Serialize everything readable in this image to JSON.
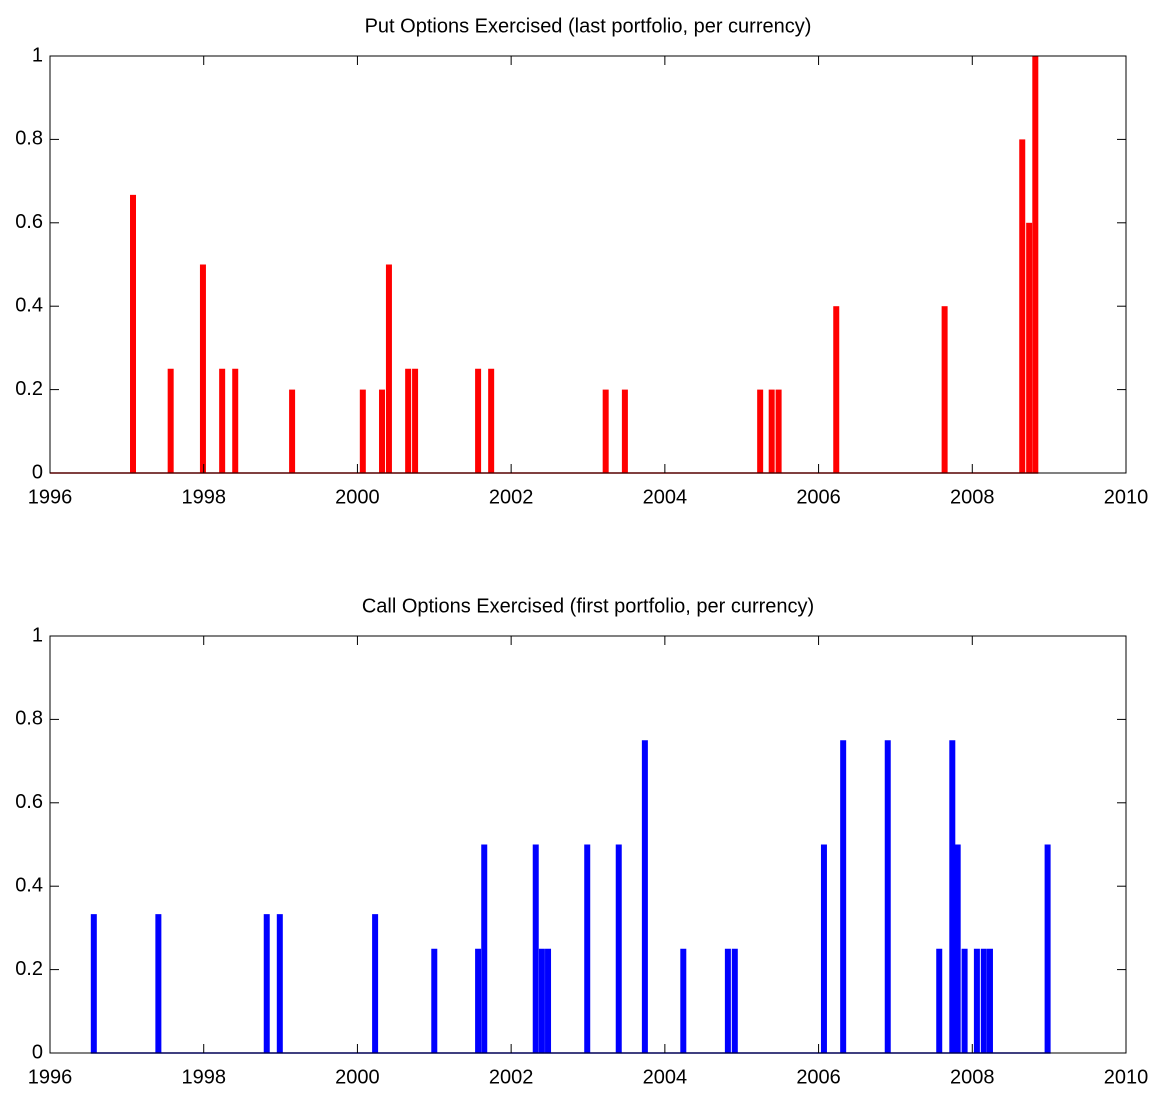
{
  "chart_data": [
    {
      "type": "bar",
      "title": "Put Options Exercised (last portfolio, per currency)",
      "color": "#ff0000",
      "x": [
        1997.08,
        1997.57,
        1997.99,
        1998.24,
        1998.41,
        1999.15,
        2000.07,
        2000.32,
        2000.41,
        2000.66,
        2000.75,
        2001.57,
        2001.74,
        2003.23,
        2003.48,
        2005.24,
        2005.39,
        2005.48,
        2006.23,
        2007.64,
        2008.65,
        2008.74,
        2008.82
      ],
      "values": [
        0.667,
        0.25,
        0.5,
        0.25,
        0.25,
        0.2,
        0.2,
        0.2,
        0.5,
        0.25,
        0.25,
        0.25,
        0.25,
        0.2,
        0.2,
        0.2,
        0.2,
        0.2,
        0.4,
        0.4,
        0.8,
        0.6,
        1
      ],
      "xlim": [
        1996,
        2010
      ],
      "ylim": [
        0,
        1
      ],
      "xticks": [
        1996,
        1998,
        2000,
        2002,
        2004,
        2006,
        2008,
        2010
      ],
      "yticks": [
        0,
        0.2,
        0.4,
        0.6,
        0.8,
        1
      ]
    },
    {
      "type": "bar",
      "title": "Call Options Exercised (first portfolio, per currency)",
      "color": "#0000ff",
      "x": [
        1996.57,
        1997.41,
        1998.82,
        1998.99,
        2000.23,
        2001.0,
        2001.57,
        2001.65,
        2002.32,
        2002.4,
        2002.48,
        2002.99,
        2003.4,
        2003.74,
        2004.24,
        2004.82,
        2004.91,
        2006.07,
        2006.32,
        2006.9,
        2007.57,
        2007.74,
        2007.81,
        2007.9,
        2008.06,
        2008.15,
        2008.23,
        2008.98
      ],
      "values": [
        0.333,
        0.333,
        0.333,
        0.333,
        0.333,
        0.25,
        0.25,
        0.5,
        0.5,
        0.25,
        0.25,
        0.5,
        0.5,
        0.75,
        0.25,
        0.25,
        0.25,
        0.5,
        0.75,
        0.75,
        0.25,
        0.75,
        0.5,
        0.25,
        0.25,
        0.25,
        0.25,
        0.5
      ],
      "xlim": [
        1996,
        2010
      ],
      "ylim": [
        0,
        1
      ],
      "xticks": [
        1996,
        1998,
        2000,
        2002,
        2004,
        2006,
        2008,
        2010
      ],
      "yticks": [
        0,
        0.2,
        0.4,
        0.6,
        0.8,
        1
      ]
    }
  ]
}
